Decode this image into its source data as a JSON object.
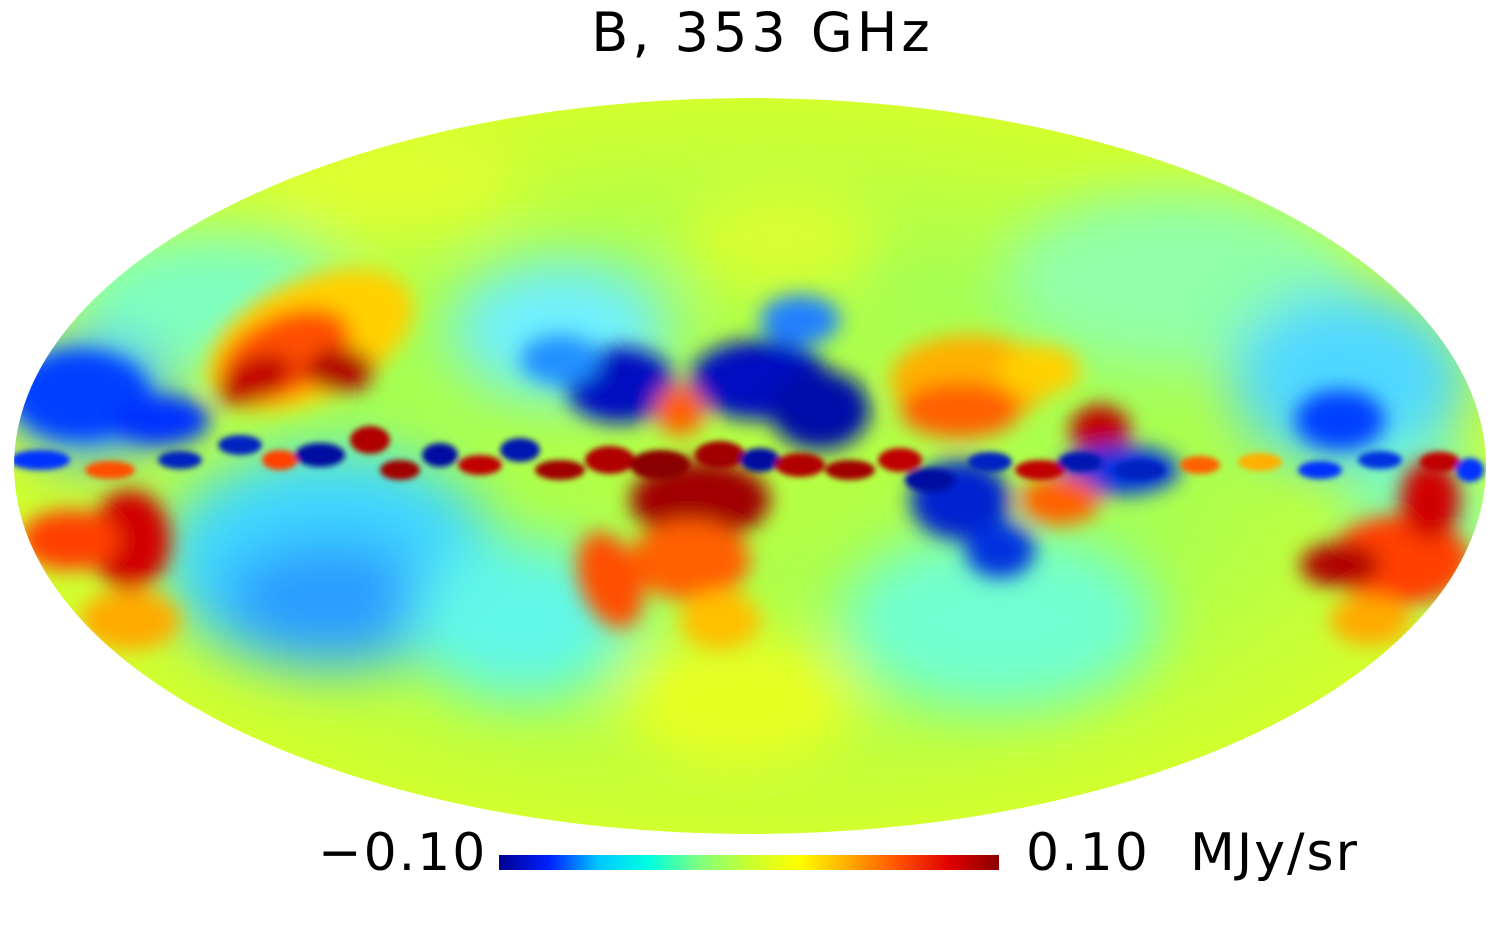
{
  "title": "B, 353 GHz",
  "map": {
    "projection": "mollweide",
    "colormap": "jet",
    "colormap_stops": [
      "#00008f",
      "#0020ff",
      "#00c8ff",
      "#00ffe0",
      "#7fff7f",
      "#c8ff30",
      "#ffff00",
      "#ffaa00",
      "#ff5000",
      "#e00000",
      "#8b0000"
    ]
  },
  "colorbar": {
    "min_label": "−0.10",
    "max_label": "0.10",
    "unit": "MJy/sr"
  }
}
